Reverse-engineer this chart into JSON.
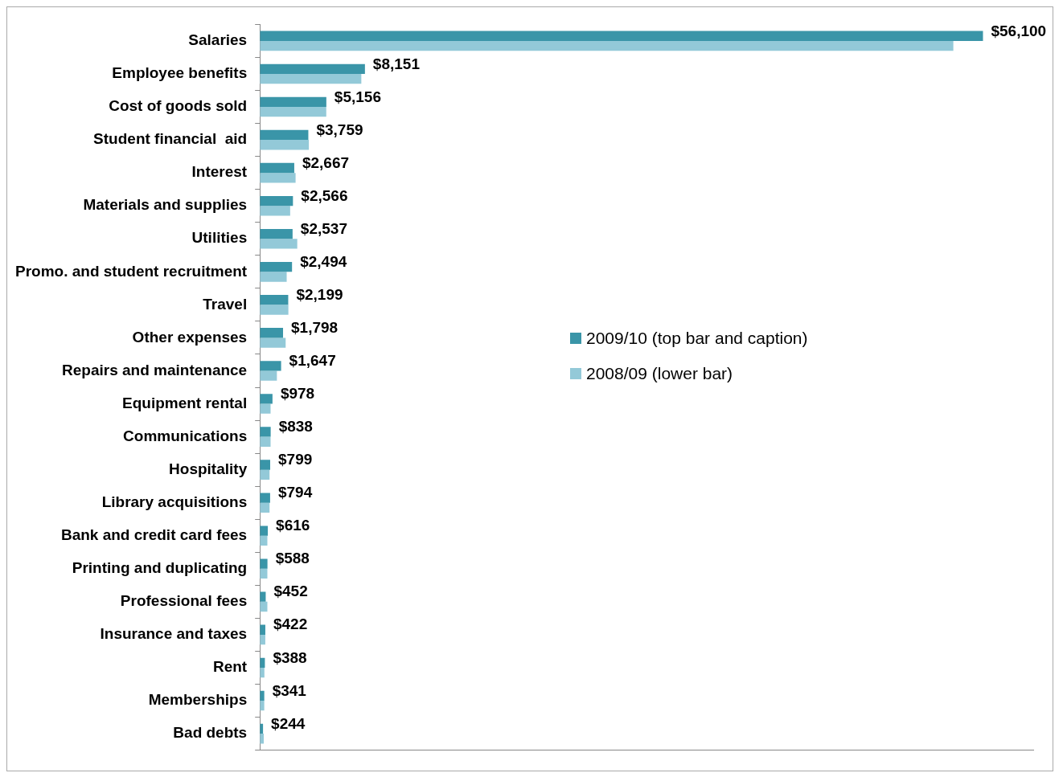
{
  "chart_data": {
    "type": "bar",
    "orientation": "horizontal",
    "categories": [
      "Salaries",
      "Employee benefits",
      "Cost of goods sold",
      "Student financial  aid",
      "Interest",
      "Materials and supplies",
      "Utilities",
      "Promo. and student recruitment",
      "Travel",
      "Other expenses",
      "Repairs and maintenance",
      "Equipment rental",
      "Communications",
      "Hospitality",
      "Library acquisitions",
      "Bank and credit card fees",
      "Printing and duplicating",
      "Professional fees",
      "Insurance and taxes",
      "Rent",
      "Memberships",
      "Bad debts"
    ],
    "series": [
      {
        "name": "2009/10 (top bar and caption)",
        "color": "#3a95a8",
        "values": [
          56100,
          8151,
          5156,
          3759,
          2667,
          2566,
          2537,
          2494,
          2199,
          1798,
          1647,
          978,
          838,
          799,
          794,
          616,
          588,
          452,
          422,
          388,
          341,
          244
        ],
        "value_labels": [
          "$56,100",
          "$8,151",
          "$5,156",
          "$3,759",
          "$2,667",
          "$2,566",
          "$2,537",
          "$2,494",
          "$2,199",
          "$1,798",
          "$1,647",
          "$978",
          "$838",
          "$799",
          "$794",
          "$616",
          "$588",
          "$452",
          "$422",
          "$388",
          "$341",
          "$244"
        ]
      },
      {
        "name": "2008/09 (lower bar)",
        "color": "#93c9d8",
        "values": [
          53800,
          7870,
          5150,
          3800,
          2770,
          2350,
          2900,
          2080,
          2210,
          2000,
          1320,
          830,
          830,
          750,
          750,
          580,
          580,
          580,
          420,
          350,
          340,
          300
        ]
      }
    ],
    "xlim": [
      0,
      60000
    ],
    "tick_labels": "y",
    "grid": false,
    "legend": "right"
  }
}
